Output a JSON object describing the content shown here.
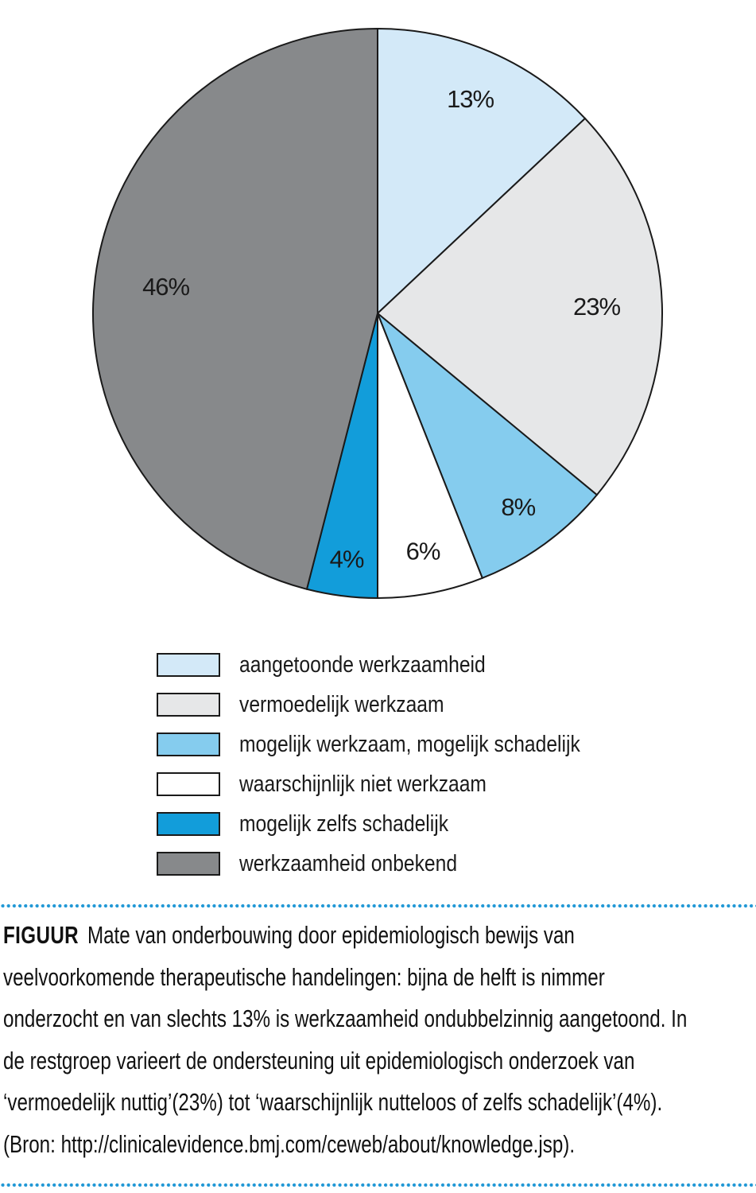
{
  "chart_data": {
    "type": "pie",
    "direction": "clockwise",
    "start_angle_deg": 0,
    "legend_position": "below",
    "outline_color": "#1a1a1a",
    "label_radius_fractions": [
      0.82,
      0.77,
      0.84,
      0.85,
      0.87,
      0.75
    ],
    "slices": [
      {
        "label": "aangetoonde werkzaamheid",
        "value": 13,
        "display": "13%",
        "color": "#d3e9f8"
      },
      {
        "label": "vermoedelijk werkzaam",
        "value": 23,
        "display": "23%",
        "color": "#e6e7e8"
      },
      {
        "label": "mogelijk werkzaam, mogelijk schadelijk",
        "value": 8,
        "display": "8%",
        "color": "#85ccee"
      },
      {
        "label": "waarschijnlijk niet werkzaam",
        "value": 6,
        "display": "6%",
        "color": "#ffffff"
      },
      {
        "label": "mogelijk zelfs schadelijk",
        "value": 4,
        "display": "4%",
        "color": "#129dda"
      },
      {
        "label": "werkzaamheid onbekend",
        "value": 46,
        "display": "46%",
        "color": "#87898b"
      }
    ]
  },
  "caption": {
    "label": "FIGUUR",
    "lines": [
      "Mate van onderbouwing door epidemiologisch bewijs van",
      "veelvoorkomende therapeutische handelingen: bijna de helft is nimmer",
      "onderzocht en van slechts 13% is werkzaamheid ondubbelzinnig aangetoond. In",
      "de restgroep varieert de ondersteuning uit epidemiologisch onderzoek van",
      "‘vermoedelijk nuttig’(23%) tot ‘waarschijnlijk nutteloos of zelfs schadelijk’(4%).",
      "(Bron: http://clinicalevidence.bmj.com/ceweb/about/knowledge.jsp)."
    ]
  },
  "divider_color": "#2399d6"
}
